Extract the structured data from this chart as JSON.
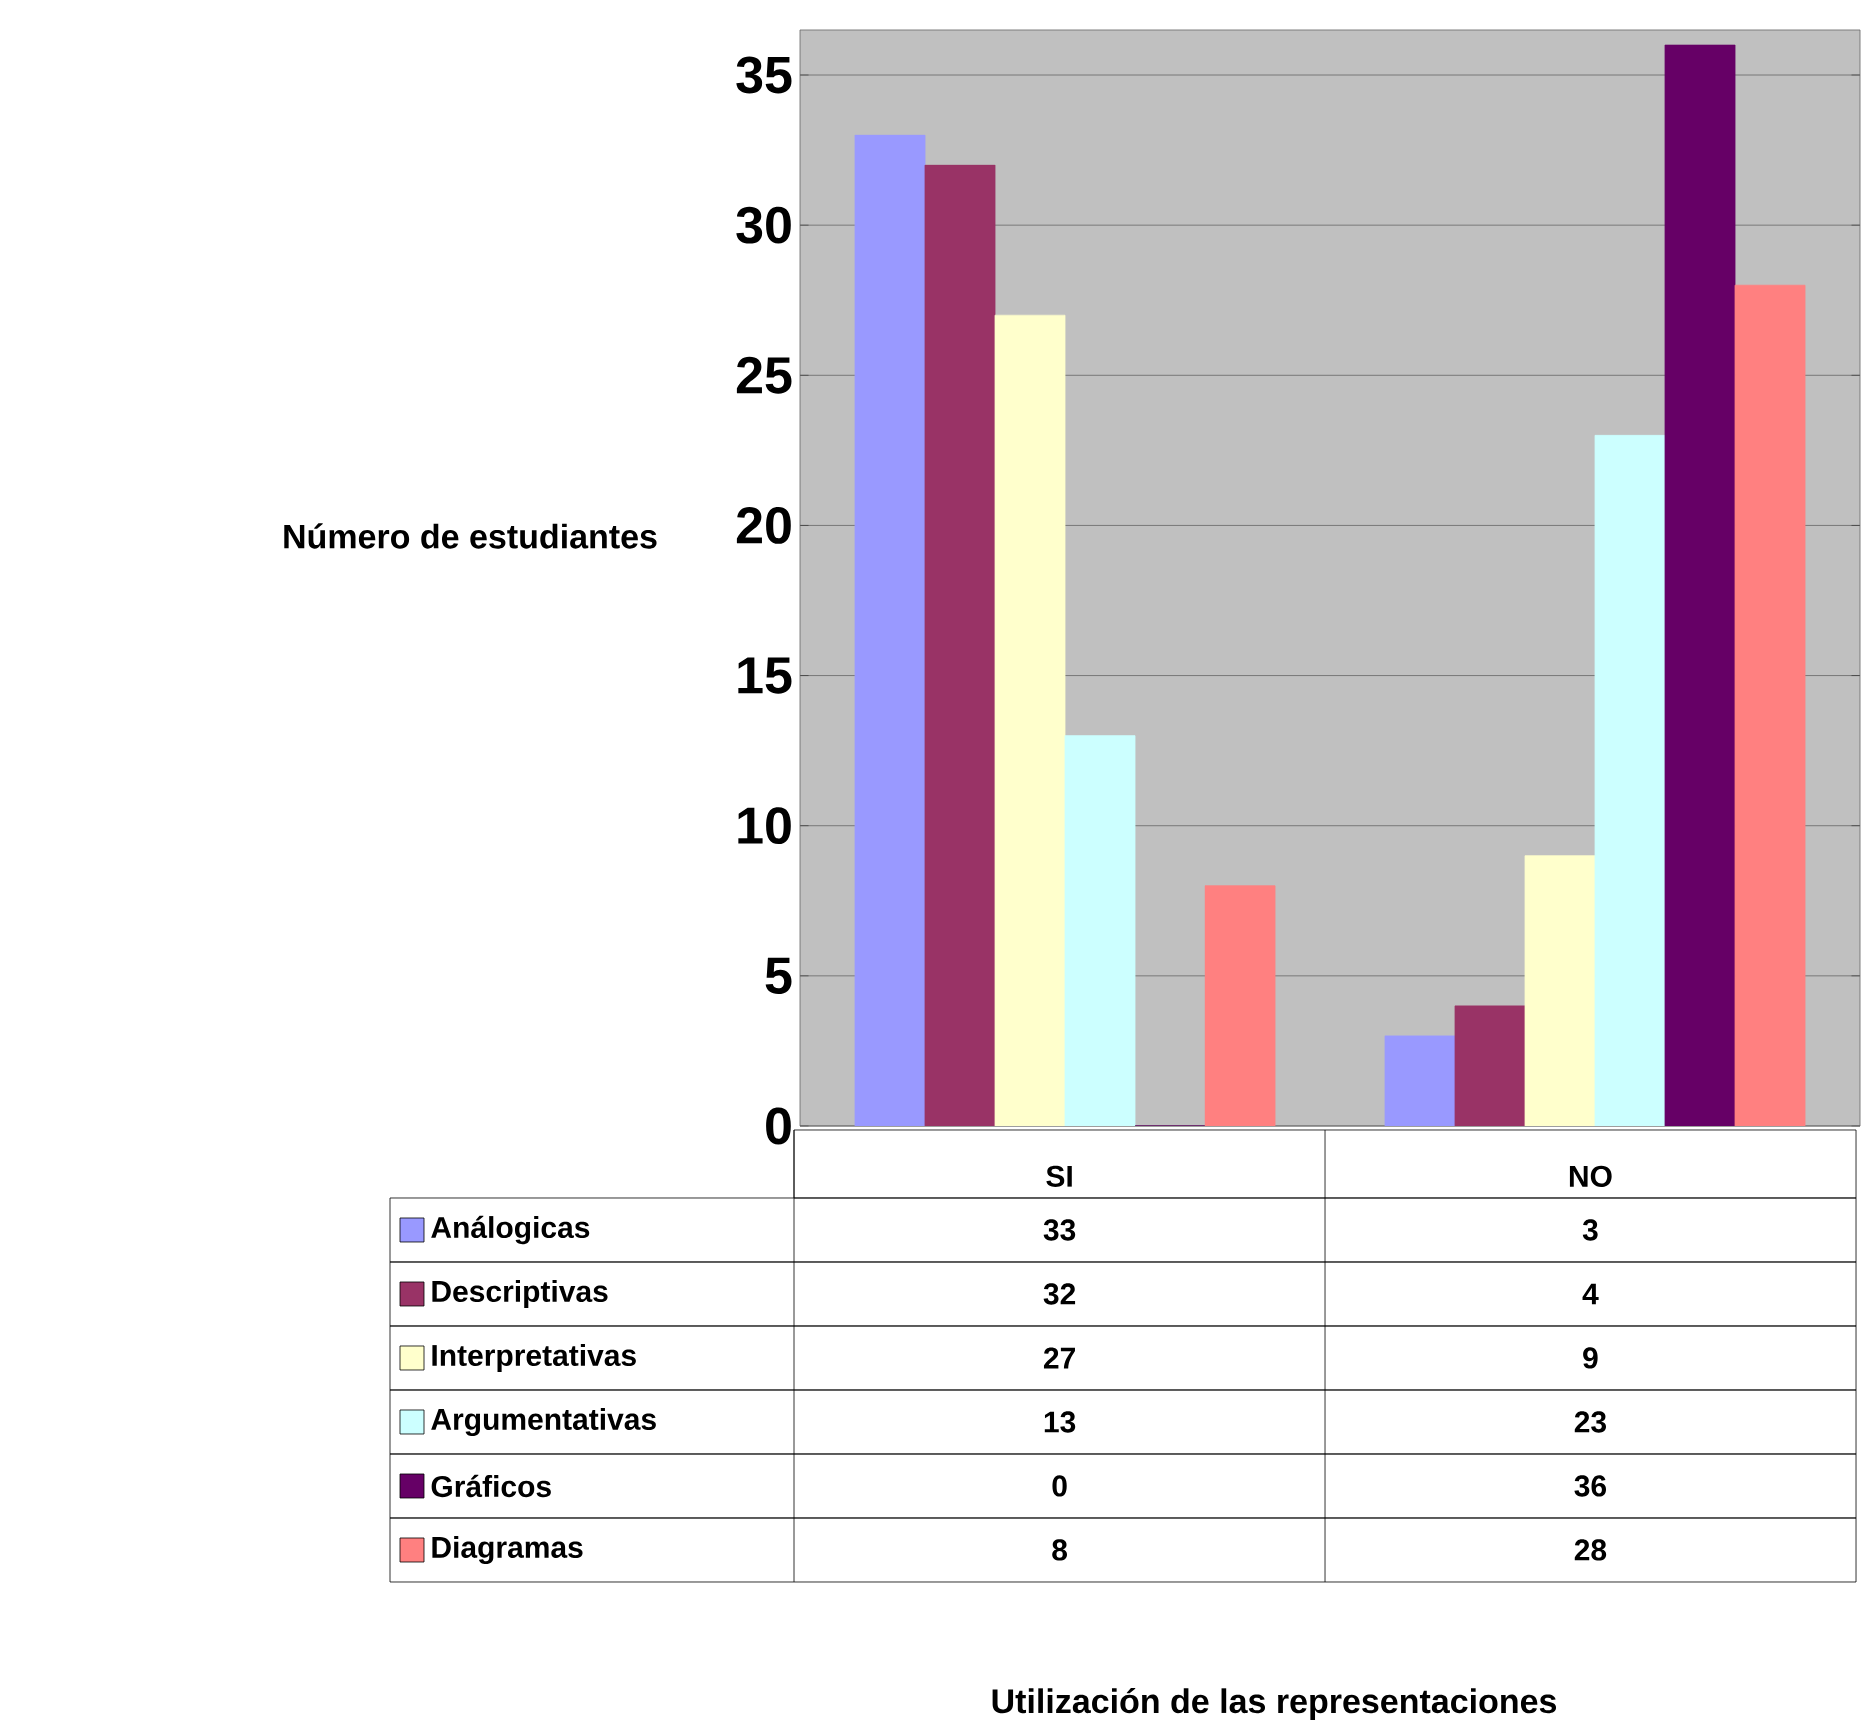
{
  "chart_data": {
    "type": "bar",
    "annotations": [
      "Utilización de las representaciones"
    ],
    "ylabel": "Número de estudiantes",
    "categories": [
      "SI",
      "NO"
    ],
    "series": [
      {
        "name": "Análogicas",
        "color": "#9999ff",
        "values": [
          33,
          3
        ]
      },
      {
        "name": "Descriptivas",
        "color": "#993366",
        "values": [
          32,
          4
        ]
      },
      {
        "name": "Interpretativas",
        "color": "#ffffcc",
        "values": [
          27,
          9
        ]
      },
      {
        "name": "Argumentativas",
        "color": "#ccffff",
        "values": [
          13,
          23
        ]
      },
      {
        "name": "Gráficos",
        "color": "#660066",
        "values": [
          0,
          36
        ]
      },
      {
        "name": "Diagramas",
        "color": "#ff8080",
        "values": [
          8,
          28
        ]
      }
    ],
    "ylim": [
      0,
      36.5
    ],
    "yticks": [
      0,
      5,
      10,
      15,
      20,
      25,
      30,
      35
    ],
    "grid": "y",
    "legend": "bottom",
    "data_labels": true
  }
}
